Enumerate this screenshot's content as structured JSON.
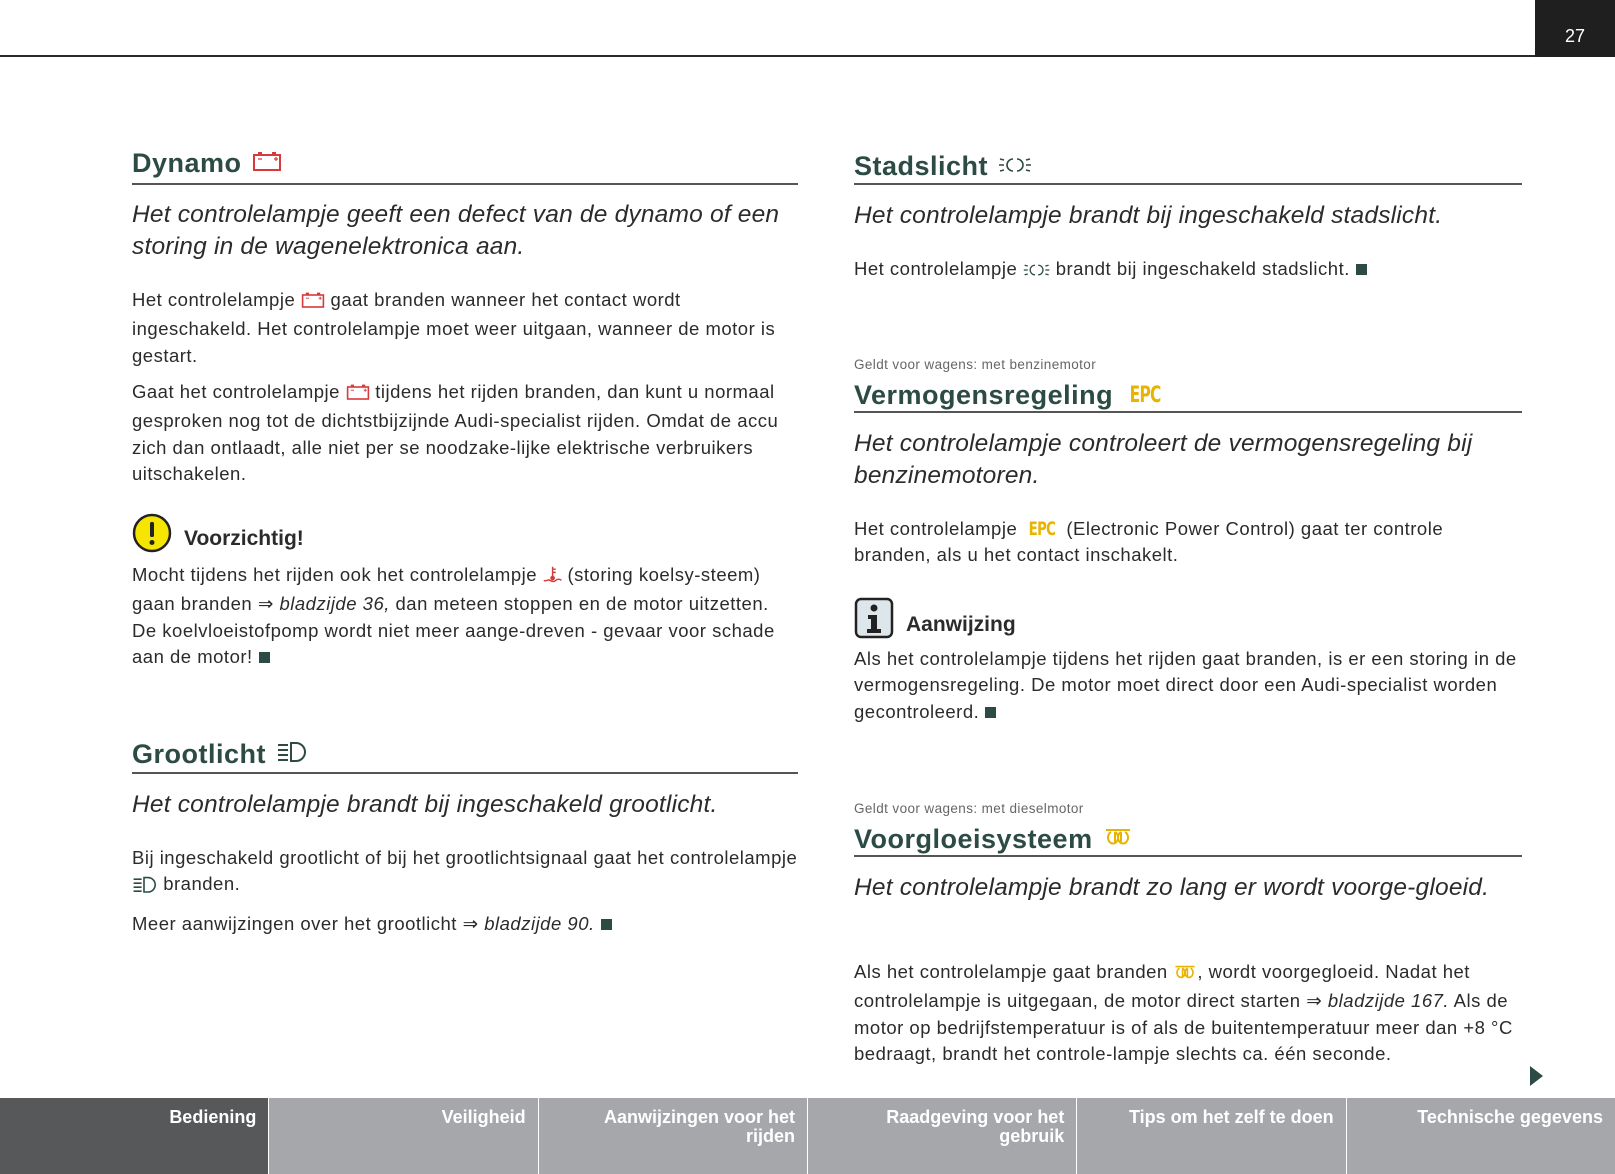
{
  "page_number": "27",
  "colors": {
    "heading": "#2d4b45",
    "battery_icon": "#d63a3a",
    "epc_icon": "#e8b400",
    "footer_active": "#57585a",
    "footer_inactive": "#a6a7ab"
  },
  "left": {
    "dynamo": {
      "heading": "Dynamo",
      "heading_icon": "battery-icon",
      "lead": "Het controlelampje geeft een defect van de dynamo of een storing in de wagenelektronica aan.",
      "paragraphs": [
        [
          {
            "t": "Het controlelampje "
          },
          {
            "icon": "battery"
          },
          {
            "t": " gaat branden wanneer het contact wordt ingeschakeld. Het controlelampje moet weer uitgaan, wanneer de motor is gestart."
          }
        ],
        [
          {
            "t": "Gaat het controlelampje "
          },
          {
            "icon": "battery"
          },
          {
            "t": " tijdens het rijden branden, dan kunt u normaal gesproken nog tot de dichtstbijzijnde Audi-specialist rijden. Omdat de accu zich dan ontlaadt, alle niet per se noodzake-lijke elektrische verbruikers uitschakelen."
          }
        ]
      ],
      "caution": {
        "icon": "exclamation-circle-icon",
        "title": "Voorzichtig!",
        "text": [
          {
            "t": "Mocht tijdens het rijden ook het controlelampje "
          },
          {
            "icon": "coolant"
          },
          {
            "t": " (storing koelsy-steem) gaan branden ⇒ "
          },
          {
            "i": "bladzijde 36,"
          },
          {
            "t": " dan meteen stoppen en de motor uitzetten. De koelvloeistofpomp wordt niet meer aange-dreven - gevaar voor schade aan de motor!"
          },
          {
            "end": true
          }
        ]
      }
    },
    "grootlicht": {
      "heading": "Grootlicht",
      "heading_icon": "high-beam-icon",
      "lead": "Het controlelampje brandt bij ingeschakeld grootlicht.",
      "paragraphs": [
        [
          {
            "t": "Bij ingeschakeld grootlicht of bij het grootlichtsignaal gaat het controlelampje "
          },
          {
            "icon": "highbeam"
          },
          {
            "t": " branden."
          }
        ],
        [
          {
            "t": "Meer aanwijzingen over het grootlicht ⇒ "
          },
          {
            "i": "bladzijde 90."
          },
          {
            "end": true
          }
        ]
      ]
    }
  },
  "right": {
    "stadslicht": {
      "heading": "Stadslicht",
      "heading_icon": "parking-light-icon",
      "lead": "Het controlelampje brandt bij ingeschakeld stadslicht.",
      "paragraphs": [
        [
          {
            "t": "Het controlelampje "
          },
          {
            "icon": "parking"
          },
          {
            "t": " brandt bij ingeschakeld stadslicht."
          },
          {
            "end": true
          }
        ]
      ]
    },
    "vermogensregeling": {
      "applies_to": "Geldt voor wagens: met benzinemotor",
      "heading": "Vermogensregeling",
      "heading_icon_text": "EPC",
      "lead": "Het controlelampje controleert de vermogensregeling bij benzinemotoren.",
      "paragraphs": [
        [
          {
            "t": "Het controlelampje "
          },
          {
            "icon": "epc"
          },
          {
            "t": " (Electronic Power Control) gaat ter controle branden, als u het contact inschakelt."
          }
        ]
      ],
      "note": {
        "icon": "info-icon",
        "title": "Aanwijzing",
        "text": [
          {
            "t": "Als het controlelampje tijdens het rijden gaat branden, is er een storing in de vermogensregeling. De motor moet direct door een Audi-specialist worden gecontroleerd."
          },
          {
            "end": true
          }
        ]
      }
    },
    "voorgloeisysteem": {
      "applies_to": "Geldt voor wagens: met dieselmotor",
      "heading": "Voorgloeisysteem",
      "heading_icon": "glow-plug-icon",
      "lead": "Het controlelampje brandt zo lang er wordt voorge-gloeid.",
      "paragraphs": [
        [
          {
            "t": "Als het controlelampje gaat branden "
          },
          {
            "icon": "glow"
          },
          {
            "t": ", wordt voorgegloeid. Nadat het controlelampje is uitgegaan, de motor direct starten ⇒ "
          },
          {
            "i": "bladzijde 167."
          },
          {
            "t": " Als de motor op bedrijfstemperatuur is of als de buitentemperatuur meer dan +8 °C bedraagt, brandt het controle-lampje slechts ca. één seconde."
          }
        ]
      ]
    }
  },
  "footer_tabs": [
    {
      "label": "Bediening",
      "active": true
    },
    {
      "label": "Veiligheid",
      "active": false
    },
    {
      "label": "Aanwijzingen voor het rijden",
      "active": false
    },
    {
      "label": "Raadgeving voor het gebruik",
      "active": false
    },
    {
      "label": "Tips om het zelf te doen",
      "active": false
    },
    {
      "label": "Technische gegevens",
      "active": false
    }
  ]
}
